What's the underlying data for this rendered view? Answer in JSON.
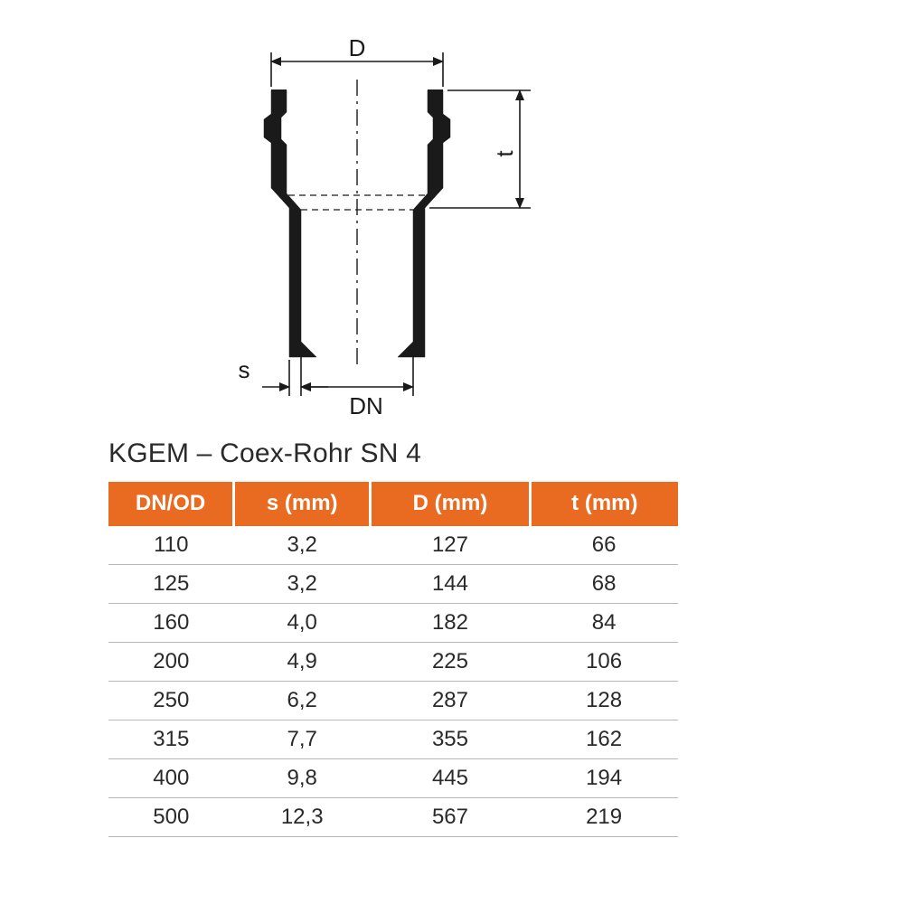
{
  "diagram": {
    "labels": {
      "D": "D",
      "t": "t",
      "s": "s",
      "DN": "DN"
    },
    "stroke_color": "#1a1a1a",
    "stroke_width_main": 2.2,
    "stroke_width_thin": 1.6,
    "font_size": 26
  },
  "table": {
    "title": "KGEM – Coex-Rohr SN 4",
    "title_fontsize": 30,
    "header_bg": "#e96b21",
    "header_fg": "#ffffff",
    "header_fontsize": 24,
    "cell_fontsize": 24,
    "border_color": "#b8b8b8",
    "columns": [
      "DN/OD",
      "s (mm)",
      "D (mm)",
      "t (mm)"
    ],
    "col_widths_pct": [
      22,
      24,
      28,
      26
    ],
    "rows": [
      [
        "110",
        "3,2",
        "127",
        "66"
      ],
      [
        "125",
        "3,2",
        "144",
        "68"
      ],
      [
        "160",
        "4,0",
        "182",
        "84"
      ],
      [
        "200",
        "4,9",
        "225",
        "106"
      ],
      [
        "250",
        "6,2",
        "287",
        "128"
      ],
      [
        "315",
        "7,7",
        "355",
        "162"
      ],
      [
        "400",
        "9,8",
        "445",
        "194"
      ],
      [
        "500",
        "12,3",
        "567",
        "219"
      ]
    ]
  }
}
